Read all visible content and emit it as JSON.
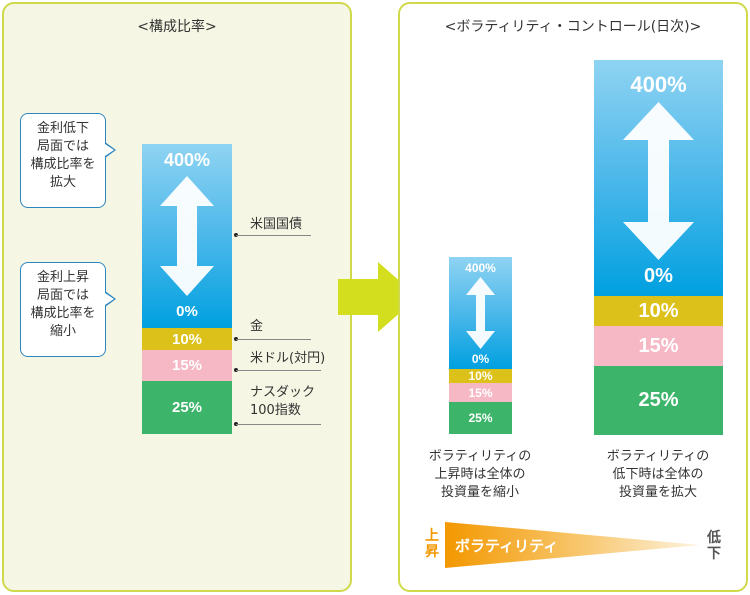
{
  "left": {
    "title": "<構成比率>",
    "callouts": [
      [
        "金利低下",
        "局面では",
        "構成比率を",
        "拡大"
      ],
      [
        "金利上昇",
        "局面では",
        "構成比率を",
        "縮小"
      ]
    ],
    "bar": {
      "top_label": "400%",
      "bottom_label": "0%",
      "gold_label": "10%",
      "pink_label": "15%",
      "green_label": "25%"
    },
    "asset_labels": {
      "treasury": "米国国債",
      "gold": "金",
      "usd": "米ドル(対円)",
      "nasdaq_line1": "ナスダック",
      "nasdaq_line2": "100指数"
    }
  },
  "right": {
    "title": "<ボラティリティ・コントロール(日次)>",
    "small_bar": {
      "top_label": "400%",
      "bottom_label": "0%",
      "gold_label": "10%",
      "pink_label": "15%",
      "green_label": "25%"
    },
    "large_bar": {
      "top_label": "400%",
      "bottom_label": "0%",
      "gold_label": "10%",
      "pink_label": "15%",
      "green_label": "25%"
    },
    "small_caption": [
      "ボラティリティの",
      "上昇時は全体の",
      "投資量を縮小"
    ],
    "large_caption": [
      "ボラティリティの",
      "低下時は全体の",
      "投資量を拡大"
    ],
    "scale": {
      "left_end": [
        "上",
        "昇"
      ],
      "label": "ボラティリティ",
      "right_end": [
        "低",
        "下"
      ]
    }
  },
  "colors": {
    "panel_border": "#cfd94a",
    "left_bg": "#f6f6e4",
    "sky": "#00a0e0",
    "gold": "#dcc11a",
    "pink": "#f6b8c4",
    "green": "#3cb56a",
    "callout_border": "#2e86c1",
    "rise_orange": "#f39800"
  }
}
